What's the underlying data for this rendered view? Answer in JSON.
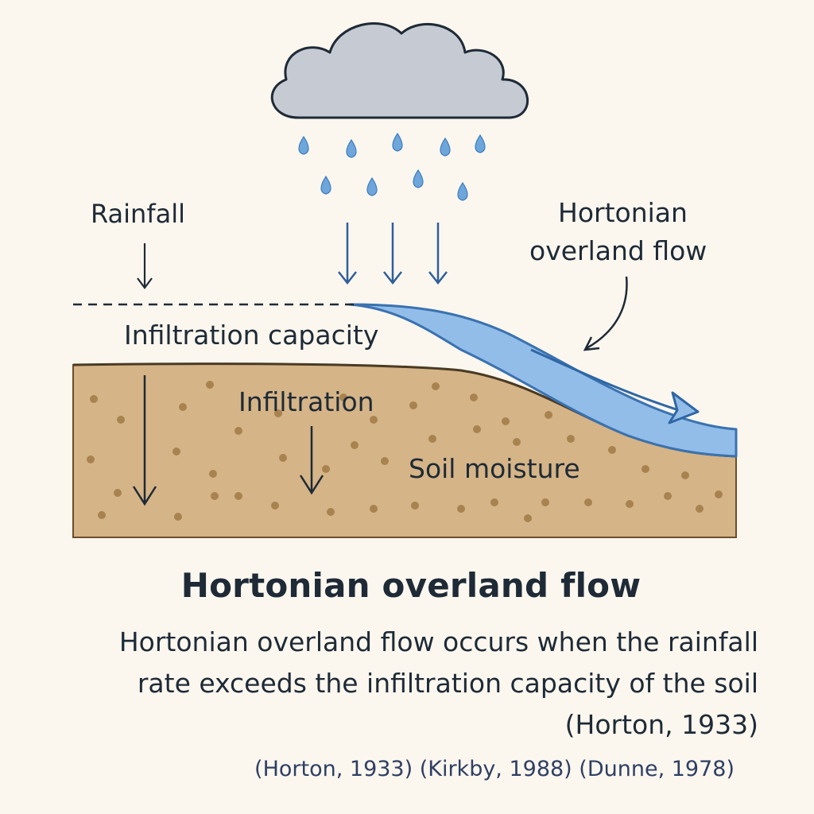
{
  "labels": {
    "rainfall": "Rainfall",
    "hortonian_label_line1": "Hortonian",
    "hortonian_label_line2": "overland flow",
    "infiltration_capacity": "Infiltration capacity",
    "infiltration": "Infiltration",
    "soil_moisture": "Soil moisture"
  },
  "title": "Hortonian overland flow",
  "description": {
    "line1": "Hortonian overland flow occurs when the rainfall",
    "line2": "rate exceeds the infiltration capacity of the soil",
    "line3": "(Horton, 1933)"
  },
  "references": "(Horton, 1933) (Kirkby, 1988) (Dunne, 1978)",
  "colors": {
    "background": "#fbf7ef",
    "cloud": "#c5cad3",
    "rain": "#6ea6dc",
    "water": "#92bde9",
    "water_edge": "#3a72b0",
    "soil": "#d5b487",
    "soil_dots": "#a8834f",
    "text": "#1e2a36"
  }
}
